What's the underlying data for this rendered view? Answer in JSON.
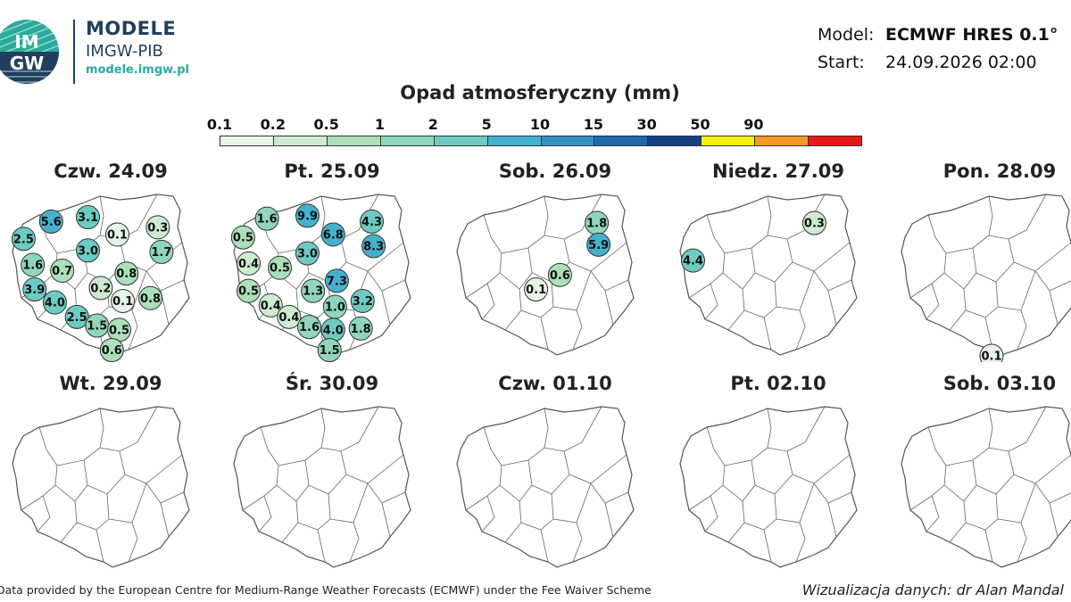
{
  "logo": {
    "icon_text_top": "IM",
    "icon_text_bottom": "GW",
    "title": "MODELE",
    "subtitle": "IMGW-PIB",
    "url": "modele.imgw.pl"
  },
  "model_info": {
    "model_label": "Model:",
    "model_value": "ECMWF HRES 0.1°",
    "start_label": "Start:",
    "start_value": "24.09.2026 02:00"
  },
  "legend": {
    "title": "Opad atmosferyczny (mm)",
    "thresholds": [
      "0.1",
      "0.2",
      "0.5",
      "1",
      "2",
      "5",
      "10",
      "15",
      "30",
      "50",
      "90"
    ],
    "colors": [
      "#e4f4e6",
      "#cdebd0",
      "#ace0ba",
      "#8fd6bd",
      "#6ccbc2",
      "#46b1ce",
      "#3393c4",
      "#1f6aa8",
      "#133f80",
      "#f5ef0a",
      "#f59a26",
      "#e81818"
    ]
  },
  "panels": [
    {
      "title": "Czw. 24.09",
      "values": [
        {
          "v": "5.6",
          "lx": 0.22,
          "ly": 0.2
        },
        {
          "v": "3.1",
          "lx": 0.42,
          "ly": 0.17
        },
        {
          "v": "0.1",
          "lx": 0.58,
          "ly": 0.29
        },
        {
          "v": "0.3",
          "lx": 0.8,
          "ly": 0.24
        },
        {
          "v": "2.5",
          "lx": 0.07,
          "ly": 0.32
        },
        {
          "v": "1.7",
          "lx": 0.82,
          "ly": 0.41
        },
        {
          "v": "3.0",
          "lx": 0.42,
          "ly": 0.4
        },
        {
          "v": "1.6",
          "lx": 0.12,
          "ly": 0.5
        },
        {
          "v": "0.7",
          "lx": 0.28,
          "ly": 0.54
        },
        {
          "v": "0.8",
          "lx": 0.63,
          "ly": 0.56
        },
        {
          "v": "3.9",
          "lx": 0.13,
          "ly": 0.67
        },
        {
          "v": "0.2",
          "lx": 0.49,
          "ly": 0.66
        },
        {
          "v": "0.1",
          "lx": 0.61,
          "ly": 0.75
        },
        {
          "v": "0.8",
          "lx": 0.76,
          "ly": 0.73
        },
        {
          "v": "4.0",
          "lx": 0.24,
          "ly": 0.76
        },
        {
          "v": "2.5",
          "lx": 0.36,
          "ly": 0.86
        },
        {
          "v": "1.5",
          "lx": 0.47,
          "ly": 0.92
        },
        {
          "v": "0.5",
          "lx": 0.59,
          "ly": 0.95
        },
        {
          "v": "0.6",
          "lx": 0.55,
          "ly": 1.09
        }
      ]
    },
    {
      "title": "Pt. 25.09",
      "values": [
        {
          "v": "1.6",
          "lx": 0.19,
          "ly": 0.18
        },
        {
          "v": "9.9",
          "lx": 0.41,
          "ly": 0.16
        },
        {
          "v": "4.3",
          "lx": 0.76,
          "ly": 0.2
        },
        {
          "v": "0.5",
          "lx": 0.06,
          "ly": 0.31
        },
        {
          "v": "6.8",
          "lx": 0.55,
          "ly": 0.29
        },
        {
          "v": "8.3",
          "lx": 0.77,
          "ly": 0.37
        },
        {
          "v": "3.0",
          "lx": 0.41,
          "ly": 0.42
        },
        {
          "v": "0.4",
          "lx": 0.09,
          "ly": 0.49
        },
        {
          "v": "0.5",
          "lx": 0.26,
          "ly": 0.52
        },
        {
          "v": "7.3",
          "lx": 0.57,
          "ly": 0.61
        },
        {
          "v": "1.3",
          "lx": 0.44,
          "ly": 0.68
        },
        {
          "v": "0.5",
          "lx": 0.09,
          "ly": 0.68
        },
        {
          "v": "3.2",
          "lx": 0.71,
          "ly": 0.75
        },
        {
          "v": "0.4",
          "lx": 0.21,
          "ly": 0.78
        },
        {
          "v": "1.0",
          "lx": 0.56,
          "ly": 0.79
        },
        {
          "v": "0.4",
          "lx": 0.31,
          "ly": 0.86
        },
        {
          "v": "1.6",
          "lx": 0.42,
          "ly": 0.93
        },
        {
          "v": "4.0",
          "lx": 0.55,
          "ly": 0.95
        },
        {
          "v": "1.8",
          "lx": 0.7,
          "ly": 0.94
        },
        {
          "v": "1.5",
          "lx": 0.53,
          "ly": 1.09
        }
      ]
    },
    {
      "title": "Sob. 26.09",
      "values": [
        {
          "v": "1.8",
          "lx": 0.77,
          "ly": 0.21
        },
        {
          "v": "5.9",
          "lx": 0.78,
          "ly": 0.36
        },
        {
          "v": "0.6",
          "lx": 0.57,
          "ly": 0.57
        },
        {
          "v": "0.1",
          "lx": 0.44,
          "ly": 0.67
        }
      ]
    },
    {
      "title": "Niedz. 27.09",
      "values": [
        {
          "v": "0.3",
          "lx": 0.74,
          "ly": 0.21
        },
        {
          "v": "4.4",
          "lx": 0.08,
          "ly": 0.47
        }
      ]
    },
    {
      "title": "Pon. 28.09",
      "values": [
        {
          "v": "0.1",
          "lx": 0.5,
          "ly": 1.13
        }
      ]
    },
    {
      "title": "Wt. 29.09",
      "values": []
    },
    {
      "title": "Śr. 30.09",
      "values": []
    },
    {
      "title": "Czw. 01.10",
      "values": []
    },
    {
      "title": "Pt. 02.10",
      "values": []
    },
    {
      "title": "Sob. 03.10",
      "values": []
    }
  ],
  "footer": {
    "left": "Data provided by the European Centre for Medium-Range Weather Forecasts (ECMWF) under the Fee Waiver Scheme",
    "right": "Wizualizacja danych: dr Alan Mandal"
  }
}
